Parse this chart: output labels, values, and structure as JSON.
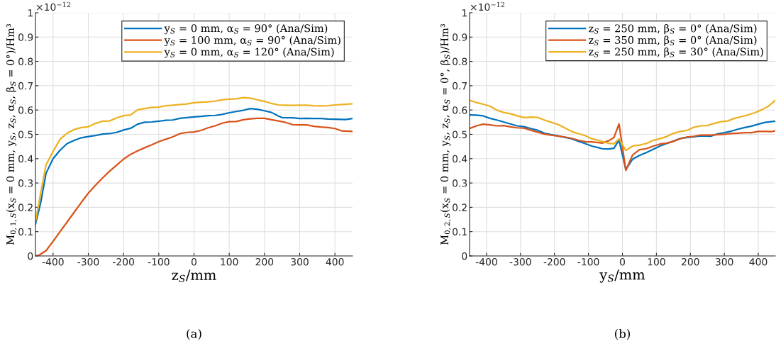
{
  "chart_data": [
    {
      "type": "line",
      "xlabel": "z$_{S}$/mm",
      "ylabel": "M$_{0,1,S}$(x$_{S}$ = 0 mm, y$_{S}$, z$_{S}$, α$_{S}$, β$_{S}$ = 0°)/Hm³",
      "annotations": [
        "×10$^{−12}$",
        "(a)"
      ],
      "xlim": [
        -450,
        450
      ],
      "xticks": [
        -400,
        -300,
        -200,
        -100,
        0,
        100,
        200,
        300,
        400
      ],
      "ylim": [
        0,
        1
      ],
      "yticks": [
        0,
        0.1,
        0.2,
        0.3,
        0.4,
        0.5,
        0.6,
        0.7,
        0.8,
        0.9,
        1
      ],
      "grid": true,
      "legend": "top right",
      "line_style": "solid",
      "series": [
        {
          "name": "y$_{S}$ = 0 mm, α$_{S}$ = 90° (Ana/Sim)",
          "color": "#0072bd",
          "x": [
            -450,
            -435,
            -420,
            -400,
            -380,
            -360,
            -340,
            -320,
            -300,
            -280,
            -260,
            -240,
            -220,
            -200,
            -180,
            -160,
            -140,
            -120,
            -100,
            -80,
            -60,
            -40,
            -20,
            0,
            20,
            40,
            60,
            80,
            100,
            120,
            140,
            160,
            180,
            200,
            220,
            240,
            250,
            280,
            300,
            320,
            340,
            360,
            380,
            400,
            430,
            450
          ],
          "values": [
            0.13,
            0.22,
            0.34,
            0.4,
            0.435,
            0.462,
            0.475,
            0.486,
            0.491,
            0.495,
            0.501,
            0.503,
            0.508,
            0.518,
            0.525,
            0.542,
            0.55,
            0.551,
            0.554,
            0.558,
            0.559,
            0.566,
            0.569,
            0.572,
            0.574,
            0.577,
            0.578,
            0.582,
            0.589,
            0.594,
            0.599,
            0.606,
            0.603,
            0.597,
            0.59,
            0.575,
            0.569,
            0.568,
            0.565,
            0.566,
            0.565,
            0.565,
            0.563,
            0.562,
            0.561,
            0.565
          ]
        },
        {
          "name": "y$_{S}$ = 100 mm, α$_{S}$ = 90° (Ana/Sim)",
          "color": "#d95319",
          "x": [
            -450,
            -440,
            -420,
            -400,
            -380,
            -360,
            -340,
            -320,
            -300,
            -280,
            -260,
            -240,
            -220,
            -200,
            -180,
            -160,
            -140,
            -120,
            -100,
            -80,
            -60,
            -40,
            -20,
            0,
            20,
            40,
            60,
            80,
            100,
            120,
            140,
            160,
            180,
            200,
            220,
            240,
            260,
            280,
            300,
            320,
            340,
            360,
            380,
            400,
            420,
            450
          ],
          "values": [
            0.0,
            0.003,
            0.022,
            0.06,
            0.1,
            0.14,
            0.18,
            0.22,
            0.258,
            0.29,
            0.32,
            0.348,
            0.373,
            0.398,
            0.418,
            0.432,
            0.445,
            0.457,
            0.47,
            0.48,
            0.49,
            0.503,
            0.508,
            0.51,
            0.516,
            0.527,
            0.535,
            0.546,
            0.552,
            0.553,
            0.56,
            0.564,
            0.566,
            0.566,
            0.56,
            0.555,
            0.549,
            0.54,
            0.539,
            0.539,
            0.533,
            0.53,
            0.528,
            0.524,
            0.514,
            0.512
          ]
        },
        {
          "name": "y$_{S}$ = 0 mm, α$_{S}$ = 120° (Ana/Sim)",
          "color": "#edb120",
          "x": [
            -450,
            -435,
            -420,
            -400,
            -380,
            -360,
            -340,
            -320,
            -300,
            -280,
            -260,
            -240,
            -220,
            -200,
            -180,
            -160,
            -140,
            -120,
            -100,
            -80,
            -60,
            -40,
            -20,
            0,
            20,
            40,
            60,
            80,
            100,
            120,
            140,
            160,
            180,
            200,
            220,
            240,
            260,
            280,
            300,
            320,
            340,
            360,
            380,
            400,
            420,
            450
          ],
          "values": [
            0.14,
            0.26,
            0.375,
            0.43,
            0.48,
            0.505,
            0.52,
            0.528,
            0.531,
            0.545,
            0.554,
            0.555,
            0.567,
            0.577,
            0.58,
            0.601,
            0.606,
            0.611,
            0.612,
            0.618,
            0.62,
            0.623,
            0.625,
            0.63,
            0.632,
            0.634,
            0.637,
            0.642,
            0.645,
            0.646,
            0.651,
            0.649,
            0.642,
            0.636,
            0.627,
            0.621,
            0.62,
            0.619,
            0.62,
            0.62,
            0.618,
            0.617,
            0.618,
            0.621,
            0.623,
            0.626
          ]
        }
      ]
    },
    {
      "type": "line",
      "xlabel": "y$_{S}$/mm",
      "ylabel": "M$_{0,2,S}$(x$_{S}$ = 0 mm, y$_{S}$, z$_{S}$, α$_{S}$ = 0°, β$_{S}$)/Hm³",
      "annotations": [
        "×10$^{−12}$",
        "(b)"
      ],
      "xlim": [
        -450,
        450
      ],
      "xticks": [
        -400,
        -300,
        -200,
        -100,
        0,
        100,
        200,
        300,
        400
      ],
      "ylim": [
        0,
        1
      ],
      "yticks": [
        0,
        0.1,
        0.2,
        0.3,
        0.4,
        0.5,
        0.6,
        0.7,
        0.8,
        0.9,
        1
      ],
      "grid": true,
      "legend": "top right",
      "line_style": "solid",
      "series": [
        {
          "name": "z$_{S}$ = 250 mm, β$_{S}$ = 0° (Ana/Sim)",
          "color": "#0072bd",
          "x": [
            -450,
            -430,
            -410,
            -390,
            -370,
            -350,
            -330,
            -310,
            -290,
            -270,
            -250,
            -230,
            -210,
            -190,
            -170,
            -150,
            -130,
            -110,
            -90,
            -70,
            -60,
            -40,
            -25,
            -10,
            10,
            30,
            50,
            70,
            90,
            110,
            130,
            150,
            170,
            190,
            210,
            230,
            260,
            280,
            300,
            320,
            340,
            360,
            380,
            400,
            420,
            450
          ],
          "values": [
            0.58,
            0.579,
            0.576,
            0.566,
            0.559,
            0.551,
            0.543,
            0.535,
            0.532,
            0.524,
            0.517,
            0.505,
            0.499,
            0.494,
            0.488,
            0.482,
            0.472,
            0.462,
            0.452,
            0.445,
            0.441,
            0.44,
            0.443,
            0.477,
            0.355,
            0.398,
            0.413,
            0.425,
            0.438,
            0.452,
            0.462,
            0.472,
            0.483,
            0.487,
            0.49,
            0.494,
            0.492,
            0.502,
            0.507,
            0.513,
            0.521,
            0.528,
            0.534,
            0.542,
            0.549,
            0.554
          ]
        },
        {
          "name": "z$_{S}$ = 350 mm, β$_{S}$ = 0° (Ana/Sim)",
          "color": "#d95319",
          "x": [
            -450,
            -430,
            -410,
            -390,
            -370,
            -350,
            -330,
            -310,
            -290,
            -270,
            -250,
            -230,
            -210,
            -190,
            -170,
            -150,
            -130,
            -110,
            -90,
            -70,
            -60,
            -40,
            -25,
            -10,
            10,
            30,
            50,
            70,
            90,
            110,
            130,
            150,
            170,
            190,
            210,
            230,
            260,
            280,
            300,
            320,
            340,
            360,
            380,
            400,
            420,
            440,
            450
          ],
          "values": [
            0.524,
            0.535,
            0.542,
            0.539,
            0.535,
            0.536,
            0.531,
            0.527,
            0.526,
            0.517,
            0.509,
            0.501,
            0.497,
            0.493,
            0.489,
            0.484,
            0.476,
            0.47,
            0.469,
            0.466,
            0.464,
            0.474,
            0.487,
            0.543,
            0.352,
            0.415,
            0.437,
            0.441,
            0.451,
            0.46,
            0.464,
            0.471,
            0.482,
            0.489,
            0.492,
            0.497,
            0.497,
            0.499,
            0.5,
            0.503,
            0.505,
            0.507,
            0.507,
            0.512,
            0.512,
            0.511,
            0.515
          ]
        },
        {
          "name": "z$_{S}$ = 250 mm, β$_{S}$ = 30° (Ana/Sim)",
          "color": "#edb120",
          "x": [
            -450,
            -430,
            -410,
            -390,
            -370,
            -350,
            -330,
            -310,
            -290,
            -270,
            -250,
            -230,
            -210,
            -190,
            -170,
            -150,
            -130,
            -110,
            -90,
            -70,
            -60,
            -40,
            -25,
            -10,
            10,
            30,
            50,
            70,
            90,
            110,
            130,
            150,
            170,
            190,
            210,
            230,
            250,
            270,
            290,
            310,
            330,
            350,
            370,
            390,
            410,
            430,
            450
          ],
          "values": [
            0.64,
            0.631,
            0.624,
            0.616,
            0.6,
            0.59,
            0.585,
            0.576,
            0.569,
            0.571,
            0.57,
            0.559,
            0.55,
            0.541,
            0.527,
            0.512,
            0.503,
            0.495,
            0.482,
            0.475,
            0.471,
            0.463,
            0.461,
            0.482,
            0.434,
            0.452,
            0.456,
            0.462,
            0.475,
            0.482,
            0.491,
            0.504,
            0.512,
            0.516,
            0.529,
            0.535,
            0.536,
            0.545,
            0.552,
            0.555,
            0.566,
            0.573,
            0.58,
            0.589,
            0.601,
            0.616,
            0.64
          ]
        }
      ]
    }
  ]
}
